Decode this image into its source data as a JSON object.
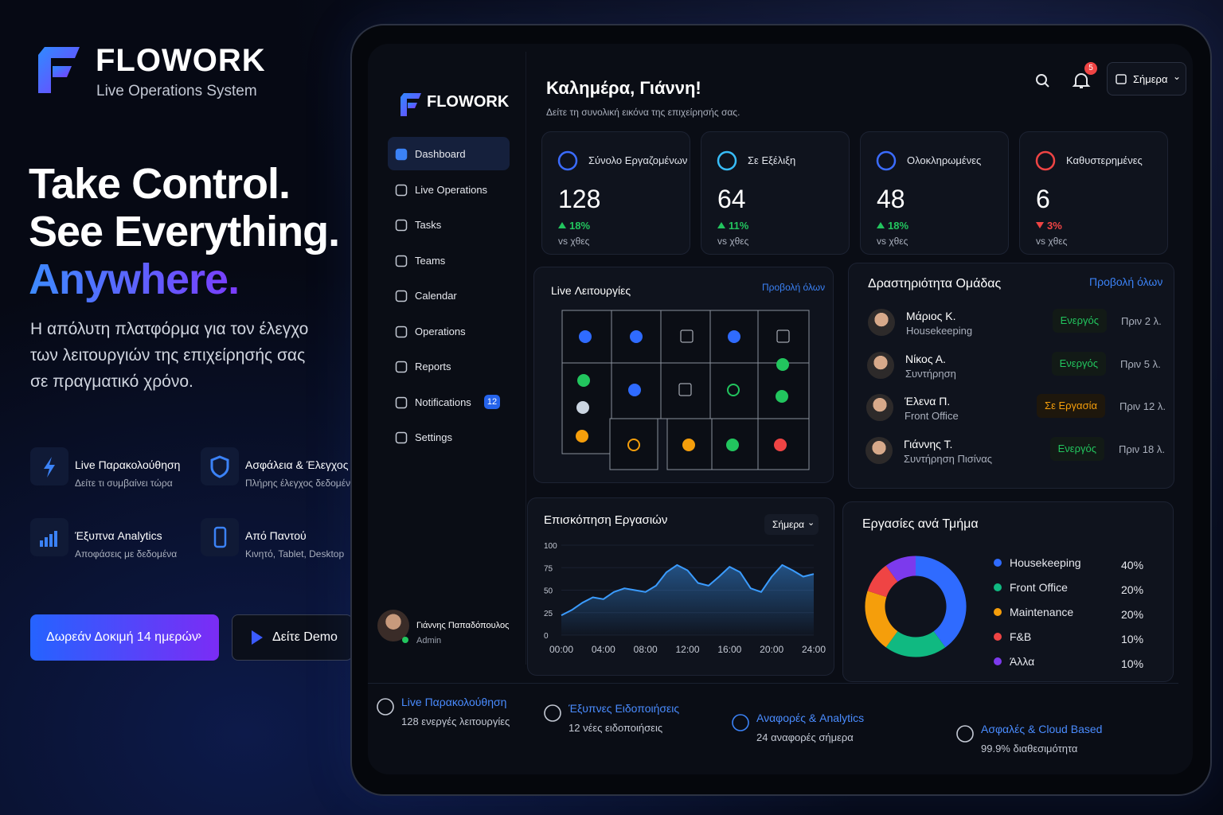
{
  "brand": {
    "name": "FLOWORK",
    "tagline": "Live Operations System"
  },
  "hero": {
    "headline": [
      "Take Control.",
      "See Everything.",
      "Anywhere."
    ],
    "description": [
      "Η απόλυτη πλατφόρμα για τον έλεγχο",
      "των λειτουργιών της επιχείρησής σας",
      "σε πραγματικό χρόνο."
    ]
  },
  "features": [
    {
      "title": "Live Παρακολούθηση",
      "subtitle": "Δείτε τι συμβαίνει τώρα"
    },
    {
      "title": "Ασφάλεια & Έλεγχος",
      "subtitle": "Πλήρης έλεγχος δεδομένων"
    },
    {
      "title": "Έξυπνα Analytics",
      "subtitle": "Αποφάσεις με δεδομένα"
    },
    {
      "title": "Από Παντού",
      "subtitle": "Κινητό, Tablet, Desktop"
    }
  ],
  "buttons": {
    "primary": "Δωρεάν Δοκιμή 14 ημερών",
    "secondary": "Δείτε Demo"
  },
  "dashboard": {
    "sidebar": {
      "brand": "FLOWORK",
      "nav": [
        {
          "label": "Dashboard",
          "active": true
        },
        {
          "label": "Live Operations"
        },
        {
          "label": "Tasks"
        },
        {
          "label": "Teams"
        },
        {
          "label": "Calendar"
        },
        {
          "label": "Operations"
        },
        {
          "label": "Reports"
        },
        {
          "label": "Notifications",
          "badge": 12
        },
        {
          "label": "Settings"
        }
      ],
      "user": {
        "name": "Γιάννης Παπαδόπουλος",
        "role": "Admin"
      }
    },
    "header": {
      "greeting": "Καλημέρα, Γιάννη!",
      "subtitle": "Δείτε τη συνολική εικόνα της επιχείρησής σας.",
      "notifications": 5,
      "date_filter": "Σήμερα"
    },
    "stats": [
      {
        "label": "Σύνολο Εργαζομένων",
        "value": 128,
        "change": "18%",
        "trend": "up",
        "compare": "vs χθες",
        "color": "#3b6cff"
      },
      {
        "label": "Σε Εξέλιξη",
        "value": 64,
        "change": "11%",
        "trend": "up",
        "compare": "vs χθες",
        "color": "#38bdf8"
      },
      {
        "label": "Ολοκληρωμένες",
        "value": 48,
        "change": "18%",
        "trend": "up",
        "compare": "vs χθες",
        "color": "#3b6cff"
      },
      {
        "label": "Καθυστερημένες",
        "value": 6,
        "change": "3%",
        "trend": "down",
        "compare": "vs χθες",
        "color": "#ef4444"
      }
    ],
    "live_operations": {
      "title": "Live Λειτουργίες",
      "link": "Προβολή όλων"
    },
    "team_activity": {
      "title": "Δραστηριότητα Ομάδας",
      "link": "Προβολή όλων",
      "members": [
        {
          "name": "Μάριος Κ.",
          "role": "Housekeeping",
          "status": "Ενεργός",
          "status_color": "#22c55e",
          "time": "Πριν 2 λ."
        },
        {
          "name": "Νίκος Α.",
          "role": "Συντήρηση",
          "status": "Ενεργός",
          "status_color": "#22c55e",
          "time": "Πριν 5 λ."
        },
        {
          "name": "Έλενα Π.",
          "role": "Front Office",
          "status": "Σε Εργασία",
          "status_color": "#f59e0b",
          "time": "Πριν 12 λ."
        },
        {
          "name": "Γιάννης Τ.",
          "role": "Συντήρηση Πισίνας",
          "status": "Ενεργός",
          "status_color": "#22c55e",
          "time": "Πριν 18 λ."
        }
      ]
    },
    "tasks_chart": {
      "type": "area",
      "title": "Επισκόπηση Εργασιών",
      "filter": "Σήμερα",
      "x": [
        0,
        1,
        2,
        3,
        4,
        5,
        6,
        7,
        8,
        9,
        10,
        11,
        12,
        13,
        14,
        15,
        16,
        17,
        18,
        19,
        20,
        21,
        22,
        23,
        24
      ],
      "values": [
        22,
        28,
        36,
        42,
        40,
        48,
        52,
        50,
        48,
        55,
        70,
        78,
        72,
        58,
        55,
        65,
        76,
        70,
        52,
        48,
        65,
        78,
        72,
        65,
        68
      ],
      "xlim": [
        0,
        24
      ],
      "xticks": [
        {
          "value": 0,
          "label": "00:00"
        },
        {
          "value": 4,
          "label": "04:00"
        },
        {
          "value": 8,
          "label": "08:00"
        },
        {
          "value": 12,
          "label": "12:00"
        },
        {
          "value": 16,
          "label": "16:00"
        },
        {
          "value": 20,
          "label": "20:00"
        },
        {
          "value": 24,
          "label": "24:00"
        }
      ],
      "ylim": [
        0,
        100
      ],
      "yticks": [
        0,
        25,
        50,
        75,
        100
      ],
      "color": "#3b9cff"
    },
    "department_chart": {
      "type": "pie",
      "title": "Εργασίες ανά Τμήμα",
      "categories": [
        "Housekeeping",
        "Front Office",
        "Maintenance",
        "F&B",
        "Άλλα"
      ],
      "values": [
        40,
        20,
        20,
        10,
        10
      ],
      "value_labels": [
        "40%",
        "20%",
        "20%",
        "10%",
        "10%"
      ],
      "colors": [
        "#2f6bff",
        "#10b981",
        "#f59e0b",
        "#ef4444",
        "#7c3aed"
      ]
    }
  },
  "footer": [
    {
      "title": "Live Παρακολούθηση",
      "subtitle": "128 ενεργές λειτουργίες"
    },
    {
      "title": "Έξυπνες Ειδοποιήσεις",
      "subtitle": "12 νέες ειδοποιήσεις"
    },
    {
      "title": "Αναφορές & Analytics",
      "subtitle": "24 αναφορές σήμερα"
    },
    {
      "title": "Ασφαλές & Cloud Based",
      "subtitle": "99.9% διαθεσιμότητα"
    }
  ]
}
